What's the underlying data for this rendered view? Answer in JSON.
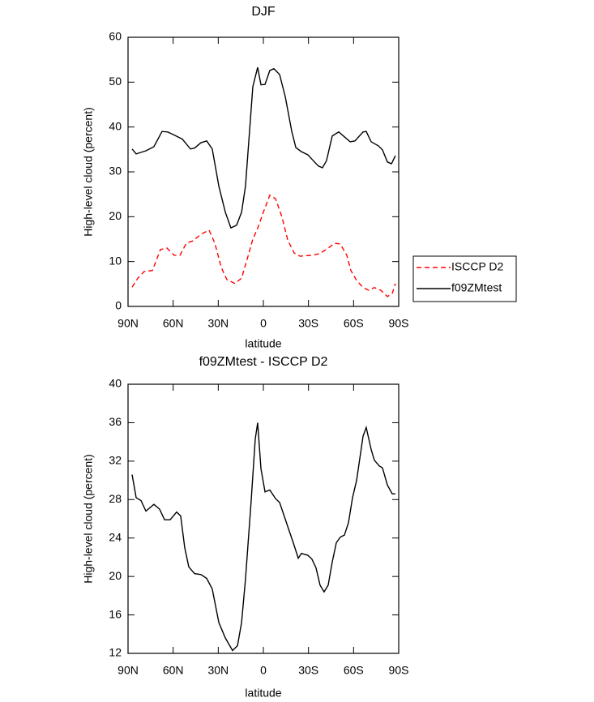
{
  "chart_data": [
    {
      "type": "line",
      "title": "DJF",
      "xlabel": "latitude",
      "ylabel": "High-level cloud (percent)",
      "xlim": [
        90,
        -90
      ],
      "xticks": [
        {
          "value": 90,
          "label": "90N"
        },
        {
          "value": 60,
          "label": "60N"
        },
        {
          "value": 30,
          "label": "30N"
        },
        0,
        {
          "value": -30,
          "label": "30S"
        },
        {
          "value": -60,
          "label": "60S"
        },
        {
          "value": -90,
          "label": "90S"
        }
      ],
      "ylim": [
        0,
        60
      ],
      "yticks": [
        0,
        10,
        20,
        30,
        40,
        50,
        60
      ],
      "legend": "right",
      "series": [
        {
          "name": "ISCCP D2",
          "color": "#ff0000",
          "line_style": "dashed",
          "x": [
            87.3,
            83.5,
            79.2,
            73.8,
            68.4,
            64.1,
            59.3,
            55.5,
            51.2,
            46.9,
            41.5,
            36.1,
            32.3,
            28.0,
            24.3,
            18.9,
            14.5,
            10.8,
            7.0,
            3.8,
            0,
            -4.3,
            -8.1,
            -12.4,
            -16.2,
            -20.5,
            -24.3,
            -32.3,
            -37.7,
            -43.1,
            -47.4,
            -51.2,
            -55.5,
            -58.2,
            -62.0,
            -66.3,
            -70.1,
            -73.8,
            -78.1,
            -82.5,
            -85.7,
            -87.8
          ],
          "values": [
            4.3,
            6.3,
            7.8,
            8,
            12.7,
            13,
            11.4,
            11.4,
            14.1,
            14.6,
            16.1,
            17,
            14.1,
            8.7,
            6,
            5.1,
            6.3,
            10.5,
            15,
            17.4,
            21,
            24.8,
            24,
            19.9,
            14.8,
            11.9,
            11.2,
            11.4,
            11.8,
            13,
            14.1,
            13.9,
            11.4,
            8,
            5.8,
            4.2,
            3.6,
            4.2,
            3.6,
            2.2,
            2.9,
            5.1
          ]
        },
        {
          "name": "f09ZMtest",
          "color": "#000000",
          "line_style": "solid",
          "x": [
            87.3,
            84.6,
            78.1,
            72.8,
            67.4,
            63.6,
            59.3,
            53.9,
            48.5,
            45.8,
            41.5,
            37.7,
            34.0,
            29.6,
            25.3,
            21.6,
            17.8,
            14.5,
            11.9,
            7.0,
            3.8,
            1.6,
            -1.1,
            -4.3,
            -7.0,
            -10.8,
            -14.6,
            -18.9,
            -21.6,
            -25.3,
            -29.6,
            -34.0,
            -36.6,
            -39.3,
            -42.0,
            -45.8,
            -50.1,
            -53.9,
            -57.7,
            -60.9,
            -66.3,
            -68.4,
            -71.7,
            -76.5,
            -79.2,
            -82.5,
            -85.2,
            -87.8
          ],
          "values": [
            35.1,
            34,
            34.7,
            35.6,
            39,
            38.9,
            38.2,
            37.3,
            35.1,
            35.3,
            36.5,
            36.9,
            35.1,
            26.8,
            21,
            17.5,
            18.1,
            21,
            26.8,
            49,
            53.3,
            49.4,
            49.5,
            52.6,
            53,
            51.7,
            46.7,
            39,
            35.4,
            34.5,
            33.8,
            32.2,
            31.3,
            30.9,
            32.5,
            38,
            38.9,
            37.8,
            36.7,
            36.9,
            38.9,
            39,
            36.7,
            35.8,
            34.9,
            32.2,
            31.8,
            33.6
          ]
        }
      ]
    },
    {
      "type": "line",
      "title": "f09ZMtest - ISCCP D2",
      "xlabel": "latitude",
      "ylabel": "High-level cloud (percent)",
      "xlim": [
        90,
        -90
      ],
      "xticks": [
        {
          "value": 90,
          "label": "90N"
        },
        {
          "value": 60,
          "label": "60N"
        },
        {
          "value": 30,
          "label": "30N"
        },
        0,
        {
          "value": -30,
          "label": "30S"
        },
        {
          "value": -60,
          "label": "60S"
        },
        {
          "value": -90,
          "label": "90S"
        }
      ],
      "ylim": [
        12,
        40
      ],
      "yticks": [
        12,
        16,
        20,
        24,
        28,
        32,
        36,
        40
      ],
      "series": [
        {
          "color": "#000000",
          "line_style": "solid",
          "x": [
            87.3,
            84.6,
            81.4,
            78.1,
            72.8,
            69.0,
            65.7,
            62.0,
            57.7,
            55.0,
            52.3,
            49.6,
            45.8,
            41.5,
            37.7,
            34.0,
            29.6,
            25.3,
            20.5,
            17.2,
            14.5,
            11.9,
            8.1,
            5.4,
            3.8,
            1.6,
            -1.1,
            -4.3,
            -8.1,
            -10.8,
            -16.2,
            -19.9,
            -23.2,
            -25.3,
            -29.6,
            -32.3,
            -35.0,
            -37.7,
            -40.4,
            -43.1,
            -45.8,
            -48.5,
            -51.2,
            -53.9,
            -56.6,
            -59.3,
            -62.0,
            -66.3,
            -68.4,
            -71.7,
            -73.8,
            -77.1,
            -79.2,
            -82.5,
            -85.7,
            -87.8
          ],
          "values": [
            30.6,
            28.2,
            27.9,
            26.8,
            27.5,
            27,
            25.9,
            25.9,
            26.7,
            26.3,
            23,
            21,
            20.3,
            20.2,
            19.8,
            18.7,
            15.2,
            13.6,
            12.3,
            12.8,
            15.2,
            19.7,
            27.9,
            34.3,
            36,
            31.2,
            28.8,
            29,
            28.1,
            27.7,
            25.2,
            23.5,
            21.9,
            22.4,
            22.2,
            21.8,
            20.9,
            19.1,
            18.4,
            19.1,
            21.5,
            23.5,
            24.1,
            24.3,
            25.6,
            28.2,
            30,
            34.6,
            35.5,
            33.2,
            32.1,
            31.5,
            31.3,
            29.5,
            28.6,
            28.6
          ]
        }
      ]
    }
  ]
}
